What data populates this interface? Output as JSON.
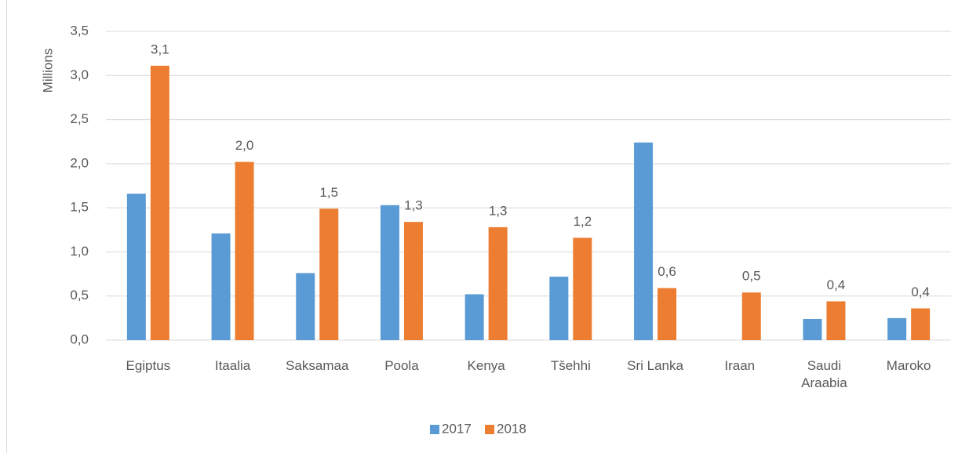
{
  "chart_data": {
    "type": "bar",
    "y_label": "Millions",
    "categories": [
      "Egiptus",
      "Itaalia",
      "Saksamaa",
      "Poola",
      "Kenya",
      "Tšehhi",
      "Sri Lanka",
      "Iraan",
      "Saudi Araabia",
      "Maroko"
    ],
    "series": [
      {
        "name": "2017",
        "color": "#5b9bd5",
        "values": [
          1.66,
          1.21,
          0.76,
          1.53,
          0.52,
          0.72,
          2.24,
          null,
          0.24,
          0.25
        ]
      },
      {
        "name": "2018",
        "color": "#ed7d31",
        "values": [
          3.11,
          2.02,
          1.49,
          1.34,
          1.28,
          1.16,
          0.59,
          0.54,
          0.44,
          0.36
        ],
        "value_labels": [
          "3,1",
          "2,0",
          "1,5",
          "1,3",
          "1,3",
          "1,2",
          "0,6",
          "0,5",
          "0,4",
          "0,4"
        ]
      }
    ],
    "ylim": [
      0,
      3.5
    ],
    "yticks": [
      {
        "value": 0,
        "label": "0,0"
      },
      {
        "value": 0.5,
        "label": "0,5"
      },
      {
        "value": 1,
        "label": "1,0"
      },
      {
        "value": 1.5,
        "label": "1,5"
      },
      {
        "value": 2,
        "label": "2,0"
      },
      {
        "value": 2.5,
        "label": "2,5"
      },
      {
        "value": 3,
        "label": "3,0"
      },
      {
        "value": 3.5,
        "label": "3,5"
      }
    ],
    "grid": true,
    "legend": "bottom"
  }
}
